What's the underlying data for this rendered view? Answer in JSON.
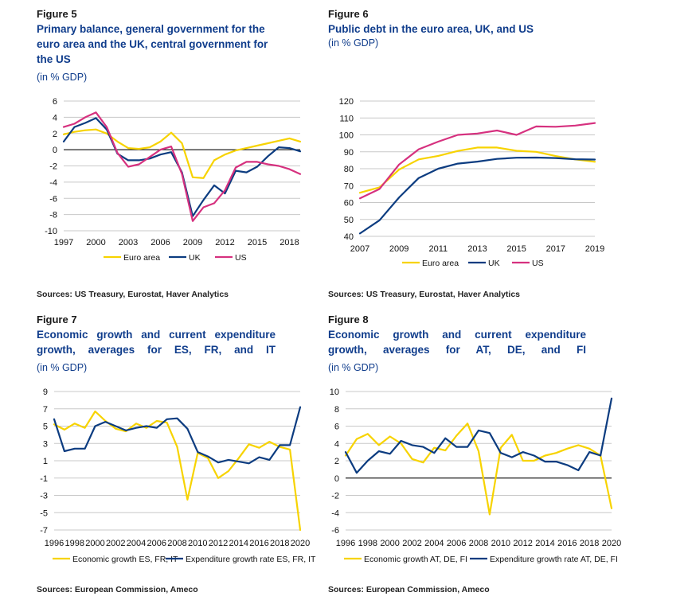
{
  "colors": {
    "euro": "#f7d300",
    "blue": "#0c3c80",
    "pink": "#d6317f",
    "grid": "#c8c8c8",
    "zero": "#222222"
  },
  "figures": [
    {
      "label": "Figure 5",
      "title_lines": [
        "Primary balance, general government for the",
        "euro area and the UK, central government for",
        "the US"
      ],
      "unit": "(in % GDP)",
      "source": "Sources: US Treasury, Eurostat, Haver Analytics"
    },
    {
      "label": "Figure 6",
      "title_lines": [
        "Public debt in the euro area, UK, and US"
      ],
      "unit": "(in % GDP)",
      "source": "Sources: US Treasury, Eurostat, Haver Analytics"
    },
    {
      "label": "Figure 7",
      "title_lines": [
        "Economic growth and current expenditure",
        "growth, averages for ES, FR, and IT"
      ],
      "unit": "(in % GDP)",
      "source": "Sources: European Commission, Ameco"
    },
    {
      "label": "Figure 8",
      "title_lines": [
        "Economic growth and current expenditure",
        "growth, averages for AT, DE, and FI"
      ],
      "unit": "(in % GDP)",
      "source": "Sources: European Commission, Ameco"
    }
  ],
  "chart_data": [
    {
      "type": "line",
      "title": "Primary balance, general government for the euro area and the UK, central government for the US",
      "ylim": [
        -10,
        6
      ],
      "yticks": [
        6,
        4,
        2,
        0,
        -2,
        -4,
        -6,
        -8,
        -10
      ],
      "xlim": [
        1997,
        2019
      ],
      "xticks": [
        1997,
        2000,
        2003,
        2006,
        2009,
        2012,
        2015,
        2018
      ],
      "grid": true,
      "legend_position": "bottom",
      "x": [
        1997,
        1998,
        1999,
        2000,
        2001,
        2002,
        2003,
        2004,
        2005,
        2006,
        2007,
        2008,
        2009,
        2010,
        2011,
        2012,
        2013,
        2014,
        2015,
        2016,
        2017,
        2018,
        2019
      ],
      "series": [
        {
          "name": "Euro area",
          "color_key": "euro",
          "values": [
            1.9,
            2.2,
            2.4,
            2.5,
            2.0,
            1.0,
            0.2,
            0.1,
            0.3,
            1.0,
            2.1,
            0.8,
            -3.4,
            -3.5,
            -1.3,
            -0.6,
            -0.1,
            0.2,
            0.5,
            0.8,
            1.1,
            1.4,
            1.0
          ]
        },
        {
          "name": "UK",
          "color_key": "blue",
          "values": [
            1.0,
            2.8,
            3.3,
            3.9,
            2.5,
            -0.5,
            -1.3,
            -1.3,
            -1.1,
            -0.6,
            -0.3,
            -2.8,
            -8.2,
            -6.2,
            -4.4,
            -5.4,
            -2.6,
            -2.8,
            -2.1,
            -0.8,
            0.3,
            0.2,
            -0.2
          ]
        },
        {
          "name": "US",
          "color_key": "pink",
          "values": [
            2.8,
            3.2,
            4.0,
            4.6,
            2.8,
            -0.4,
            -2.1,
            -1.8,
            -0.9,
            0.0,
            0.4,
            -3.0,
            -8.8,
            -7.1,
            -6.6,
            -5.0,
            -2.2,
            -1.5,
            -1.5,
            -1.8,
            -2.0,
            -2.4,
            -3.0
          ]
        }
      ]
    },
    {
      "type": "line",
      "title": "Public debt in the euro area, UK, and US",
      "ylim": [
        40,
        120
      ],
      "yticks": [
        120,
        110,
        100,
        90,
        80,
        70,
        60,
        50,
        40
      ],
      "xlim": [
        2007,
        2019
      ],
      "xticks": [
        2007,
        2009,
        2011,
        2013,
        2015,
        2017,
        2019
      ],
      "grid": true,
      "legend_position": "bottom",
      "x": [
        2007,
        2008,
        2009,
        2010,
        2011,
        2012,
        2013,
        2014,
        2015,
        2016,
        2017,
        2018,
        2019
      ],
      "series": [
        {
          "name": "Euro area",
          "color_key": "euro",
          "values": [
            65.8,
            69.0,
            79.5,
            85.5,
            87.6,
            90.5,
            92.5,
            92.5,
            90.6,
            90.0,
            87.5,
            85.5,
            84.1
          ]
        },
        {
          "name": "UK",
          "color_key": "blue",
          "values": [
            41.7,
            49.5,
            63.0,
            74.5,
            80.0,
            83.0,
            84.2,
            85.8,
            86.5,
            86.6,
            86.3,
            85.6,
            85.4
          ]
        },
        {
          "name": "US",
          "color_key": "pink",
          "values": [
            62.5,
            68.0,
            82.5,
            91.5,
            96.0,
            100.0,
            100.8,
            102.6,
            100.0,
            105.0,
            104.8,
            105.5,
            107.0
          ]
        }
      ]
    },
    {
      "type": "line",
      "title": "Economic growth and current expenditure growth, averages for ES, FR, and IT",
      "ylim": [
        -7,
        9
      ],
      "yticks": [
        9,
        7,
        5,
        3,
        1,
        -1,
        -3,
        -5,
        -7
      ],
      "xlim": [
        1996,
        2020
      ],
      "xticks": [
        1996,
        1998,
        2000,
        2002,
        2004,
        2006,
        2008,
        2010,
        2012,
        2014,
        2016,
        2018,
        2020
      ],
      "grid": true,
      "legend_position": "bottom",
      "x": [
        1996,
        1997,
        1998,
        1999,
        2000,
        2001,
        2002,
        2003,
        2004,
        2005,
        2006,
        2007,
        2008,
        2009,
        2010,
        2011,
        2012,
        2013,
        2014,
        2015,
        2016,
        2017,
        2018,
        2019,
        2020
      ],
      "series": [
        {
          "name": "Economic growth ES, FR, IT",
          "color_key": "euro",
          "values": [
            5.2,
            4.6,
            5.3,
            4.8,
            6.7,
            5.6,
            4.7,
            4.4,
            5.3,
            4.8,
            5.6,
            5.4,
            2.6,
            -3.5,
            1.9,
            1.3,
            -1.0,
            -0.2,
            1.3,
            2.9,
            2.5,
            3.2,
            2.6,
            2.3,
            -7.0
          ]
        },
        {
          "name": "Expenditure growth rate ES, FR, IT",
          "color_key": "blue",
          "values": [
            5.8,
            2.1,
            2.4,
            2.4,
            5.0,
            5.5,
            5.0,
            4.5,
            4.8,
            5.0,
            4.8,
            5.8,
            5.9,
            4.7,
            2.0,
            1.5,
            0.8,
            1.1,
            0.9,
            0.7,
            1.4,
            1.1,
            2.8,
            2.8,
            7.2
          ]
        }
      ]
    },
    {
      "type": "line",
      "title": "Economic growth and current expenditure growth, averages for AT, DE, and FI",
      "ylim": [
        -6,
        10
      ],
      "yticks": [
        10,
        8,
        6,
        4,
        2,
        0,
        -2,
        -4,
        -6
      ],
      "xlim": [
        1996,
        2020
      ],
      "xticks": [
        1996,
        1998,
        2000,
        2002,
        2004,
        2006,
        2008,
        2010,
        2012,
        2014,
        2016,
        2018,
        2020
      ],
      "grid": true,
      "legend_position": "bottom",
      "x": [
        1996,
        1997,
        1998,
        1999,
        2000,
        2001,
        2002,
        2003,
        2004,
        2005,
        2006,
        2007,
        2008,
        2009,
        2010,
        2011,
        2012,
        2013,
        2014,
        2015,
        2016,
        2017,
        2018,
        2019,
        2020
      ],
      "series": [
        {
          "name": "Economic growth AT, DE, FI",
          "color_key": "euro",
          "values": [
            2.6,
            4.5,
            5.1,
            3.8,
            4.8,
            4.0,
            2.2,
            1.8,
            3.5,
            3.2,
            4.9,
            6.3,
            3.1,
            -4.2,
            3.5,
            5.0,
            2.0,
            2.0,
            2.6,
            2.9,
            3.4,
            3.8,
            3.4,
            2.6,
            -3.5
          ]
        },
        {
          "name": "Expenditure growth rate AT, DE, FI",
          "color_key": "blue",
          "values": [
            3.0,
            0.6,
            2.0,
            3.1,
            2.8,
            4.3,
            3.8,
            3.6,
            2.9,
            4.6,
            3.6,
            3.6,
            5.5,
            5.2,
            2.9,
            2.4,
            3.0,
            2.6,
            1.9,
            1.9,
            1.5,
            0.9,
            3.0,
            2.6,
            9.2
          ]
        }
      ]
    }
  ]
}
